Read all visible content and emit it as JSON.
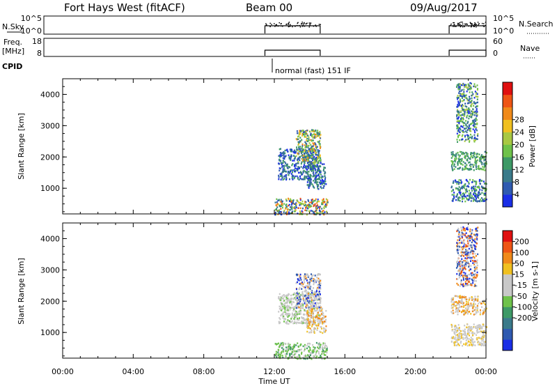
{
  "header": {
    "station": "Fort Hays West (fitACF)",
    "beam": "Beam 00",
    "date": "09/Aug/2017"
  },
  "summary_panels": {
    "nsky": {
      "label": "N.Sky",
      "ticks": [
        "10^5",
        "10^0"
      ],
      "right_ticks": [
        "10^5",
        "10^0"
      ],
      "right_label": "N.Search"
    },
    "freq": {
      "label": "Freq.",
      "unit": "[MHz]",
      "ticks": [
        "18",
        "8"
      ],
      "right_ticks": [
        "60",
        "0"
      ],
      "right_label": "Nave"
    },
    "cpid": {
      "label": "CPID",
      "mode": "normal (fast) 151 IF"
    }
  },
  "chart_data": [
    {
      "type": "heatmap",
      "name": "power",
      "ylabel": "Slant Range [km]",
      "xlabel": "",
      "yticks": [
        "1000",
        "2000",
        "3000",
        "4000"
      ],
      "ylim": [
        180,
        4500
      ],
      "xlim": [
        0,
        24
      ],
      "colorbar": {
        "label": "Power [dB]",
        "ticks": [
          "4",
          "8",
          "12",
          "16",
          "20",
          "24",
          "28"
        ],
        "colors": [
          "#1a2ee6",
          "#2f5ab0",
          "#3a7a8a",
          "#3d9966",
          "#6ec24a",
          "#a8c843",
          "#f0c020",
          "#f08a1a",
          "#ee5515",
          "#e01010"
        ]
      },
      "clusters": [
        {
          "t0": 12.0,
          "t1": 15.0,
          "r0": 180,
          "r1": 700,
          "levels": [
            0,
            1,
            2,
            3,
            4,
            5,
            6,
            7,
            8
          ]
        },
        {
          "t0": 12.2,
          "t1": 14.6,
          "r0": 1300,
          "r1": 2300,
          "levels": [
            0,
            1,
            2,
            3
          ]
        },
        {
          "t0": 13.2,
          "t1": 14.6,
          "r0": 1800,
          "r1": 2900,
          "levels": [
            1,
            2,
            3,
            4,
            5,
            6,
            7
          ]
        },
        {
          "t0": 13.8,
          "t1": 14.9,
          "r0": 1000,
          "r1": 1800,
          "levels": [
            0,
            1,
            2,
            3
          ]
        },
        {
          "t0": 22.0,
          "t1": 24.0,
          "r0": 600,
          "r1": 1300,
          "levels": [
            0,
            1,
            2,
            3,
            4
          ]
        },
        {
          "t0": 22.0,
          "t1": 24.0,
          "r0": 1600,
          "r1": 2200,
          "levels": [
            2,
            3,
            4
          ]
        },
        {
          "t0": 22.3,
          "t1": 23.5,
          "r0": 2500,
          "r1": 4400,
          "levels": [
            0,
            1,
            2,
            3,
            4,
            5
          ]
        }
      ]
    },
    {
      "type": "heatmap",
      "name": "velocity",
      "ylabel": "Slant Range [km]",
      "xlabel": "Time UT",
      "xticks": [
        "00:00",
        "04:00",
        "08:00",
        "12:00",
        "16:00",
        "20:00",
        "00:00"
      ],
      "yticks": [
        "1000",
        "2000",
        "3000",
        "4000"
      ],
      "ylim": [
        180,
        4500
      ],
      "xlim": [
        0,
        24
      ],
      "colorbar": {
        "label": "Velocity [m s-1]",
        "ticks": [
          "200",
          "100",
          "50",
          "15",
          "-15",
          "-50",
          "-100",
          "-200"
        ],
        "colors": [
          "#1a2ee6",
          "#2f5ab0",
          "#3a7a8a",
          "#3d9966",
          "#6ec24a",
          "#c8c8c8",
          "#c8c8c8",
          "#f0c020",
          "#f08a1a",
          "#ee5515",
          "#e01010"
        ]
      },
      "clusters": [
        {
          "t0": 12.0,
          "t1": 15.0,
          "r0": 180,
          "r1": 700,
          "levels": [
            3,
            4,
            4,
            4,
            5,
            6
          ]
        },
        {
          "t0": 12.2,
          "t1": 14.6,
          "r0": 1300,
          "r1": 2300,
          "levels": [
            4,
            5,
            5,
            6
          ]
        },
        {
          "t0": 13.2,
          "t1": 14.6,
          "r0": 1800,
          "r1": 2900,
          "levels": [
            0,
            1,
            5,
            5,
            5,
            6,
            8
          ]
        },
        {
          "t0": 13.8,
          "t1": 14.9,
          "r0": 1000,
          "r1": 1800,
          "levels": [
            5,
            6,
            7,
            8
          ]
        },
        {
          "t0": 22.0,
          "t1": 24.0,
          "r0": 600,
          "r1": 1300,
          "levels": [
            5,
            5,
            6,
            7
          ]
        },
        {
          "t0": 22.0,
          "t1": 24.0,
          "r0": 1600,
          "r1": 2200,
          "levels": [
            5,
            6,
            7,
            8
          ]
        },
        {
          "t0": 22.3,
          "t1": 23.5,
          "r0": 2500,
          "r1": 4400,
          "levels": [
            0,
            1,
            5,
            6,
            8,
            9
          ]
        }
      ]
    }
  ]
}
